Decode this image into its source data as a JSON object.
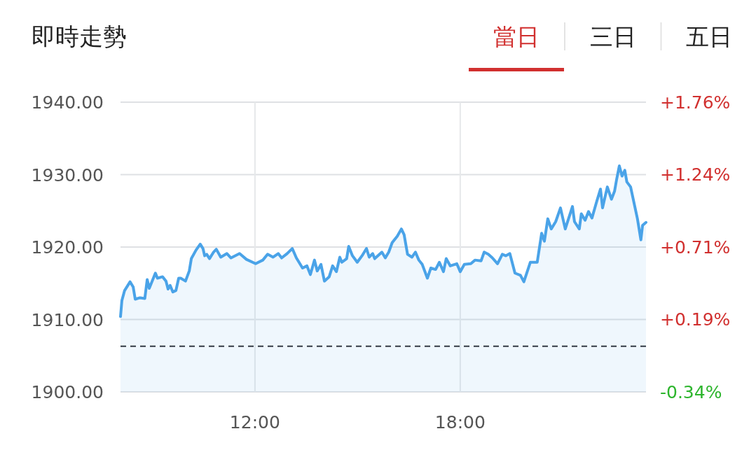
{
  "chart_data": {
    "type": "area",
    "title": "即時走勢",
    "annotations": [
      "當日",
      "三日",
      "五日"
    ],
    "x": [
      8.07,
      8.11,
      8.19,
      8.35,
      8.44,
      8.5,
      8.64,
      8.78,
      8.85,
      8.91,
      9.09,
      9.15,
      9.3,
      9.4,
      9.46,
      9.52,
      9.6,
      9.69,
      9.77,
      9.83,
      9.97,
      10.08,
      10.14,
      10.28,
      10.4,
      10.48,
      10.53,
      10.59,
      10.67,
      10.79,
      10.87,
      11.0,
      11.18,
      11.3,
      11.55,
      11.75,
      12.02,
      12.23,
      12.37,
      12.53,
      12.68,
      12.78,
      12.94,
      13.09,
      13.21,
      13.39,
      13.52,
      13.62,
      13.74,
      13.82,
      13.93,
      14.03,
      14.17,
      14.27,
      14.38,
      14.48,
      14.54,
      14.68,
      14.74,
      14.85,
      14.99,
      15.13,
      15.26,
      15.34,
      15.44,
      15.5,
      15.71,
      15.81,
      15.91,
      16.01,
      16.16,
      16.28,
      16.36,
      16.46,
      16.59,
      16.69,
      16.79,
      16.89,
      17.04,
      17.14,
      17.28,
      17.39,
      17.51,
      17.59,
      17.71,
      17.9,
      18.0,
      18.12,
      18.31,
      18.43,
      18.61,
      18.7,
      18.82,
      18.94,
      19.09,
      19.23,
      19.33,
      19.45,
      19.6,
      19.76,
      19.86,
      20.05,
      20.25,
      20.38,
      20.46,
      20.56,
      20.66,
      20.79,
      20.93,
      21.07,
      21.28,
      21.34,
      21.48,
      21.54,
      21.65,
      21.75,
      21.85,
      21.99,
      22.1,
      22.16,
      22.3,
      22.42,
      22.51,
      22.57,
      22.65,
      22.73,
      22.81,
      22.87,
      22.98,
      23.08,
      23.18,
      23.28,
      23.33,
      23.43
    ],
    "series": [
      {
        "color": "#4aa3e8",
        "values": [
          1910.4,
          1912.6,
          1914.0,
          1915.2,
          1914.5,
          1912.8,
          1913.0,
          1912.9,
          1915.5,
          1914.3,
          1916.4,
          1915.7,
          1915.9,
          1915.3,
          1914.2,
          1914.7,
          1913.8,
          1914.0,
          1915.7,
          1915.7,
          1915.3,
          1916.7,
          1918.4,
          1919.6,
          1920.4,
          1919.8,
          1918.8,
          1919.0,
          1918.4,
          1919.3,
          1919.7,
          1918.6,
          1919.1,
          1918.5,
          1919.1,
          1918.3,
          1917.7,
          1918.2,
          1919.0,
          1918.6,
          1919.1,
          1918.5,
          1919.1,
          1919.8,
          1918.5,
          1917.1,
          1917.4,
          1916.2,
          1918.2,
          1916.7,
          1917.6,
          1915.3,
          1915.9,
          1917.4,
          1916.6,
          1918.6,
          1917.9,
          1918.4,
          1920.1,
          1918.8,
          1917.9,
          1918.8,
          1919.8,
          1918.6,
          1919.1,
          1918.4,
          1919.3,
          1918.5,
          1919.3,
          1920.6,
          1921.5,
          1922.5,
          1921.7,
          1919.0,
          1918.6,
          1919.3,
          1918.2,
          1917.6,
          1915.7,
          1917.1,
          1916.9,
          1917.9,
          1916.6,
          1918.4,
          1917.4,
          1917.7,
          1916.6,
          1917.6,
          1917.7,
          1918.2,
          1918.1,
          1919.3,
          1919.0,
          1918.5,
          1917.7,
          1919.0,
          1918.8,
          1919.1,
          1916.4,
          1916.1,
          1915.2,
          1917.9,
          1917.9,
          1921.9,
          1920.8,
          1923.9,
          1922.5,
          1923.5,
          1925.4,
          1922.5,
          1925.6,
          1923.5,
          1922.5,
          1924.6,
          1923.7,
          1924.9,
          1924.0,
          1926.3,
          1928.0,
          1925.4,
          1928.3,
          1926.6,
          1927.7,
          1929.3,
          1931.2,
          1929.8,
          1930.6,
          1929.0,
          1928.3,
          1926.1,
          1923.9,
          1921.0,
          1923.0,
          1923.4
        ]
      }
    ],
    "xlim": [
      8.07,
      23.43
    ],
    "xticks": [
      {
        "value": 12,
        "label": "12:00"
      },
      {
        "value": 18,
        "label": "18:00"
      }
    ],
    "ylim": [
      1900,
      1940
    ],
    "yticks": [
      {
        "value": 1900,
        "label": "1900.00"
      },
      {
        "value": 1910,
        "label": "1910.00"
      },
      {
        "value": 1920,
        "label": "1920.00"
      },
      {
        "value": 1930,
        "label": "1930.00"
      },
      {
        "value": 1940,
        "label": "1940.00"
      }
    ],
    "y2lim": [
      -0.34,
      1.76
    ],
    "y2ticks": [
      {
        "value": -0.34,
        "label": "-0.34%"
      },
      {
        "value": 0.19,
        "label": "+0.19%"
      },
      {
        "value": 0.71,
        "label": "+0.71%"
      },
      {
        "value": 1.24,
        "label": "+1.24%"
      },
      {
        "value": 1.76,
        "label": "+1.76%"
      }
    ],
    "ref_lines": [
      {
        "axis": "y",
        "value": 1906.3,
        "color": "#333a44",
        "line_style": "dashed"
      }
    ],
    "grid": true
  }
}
